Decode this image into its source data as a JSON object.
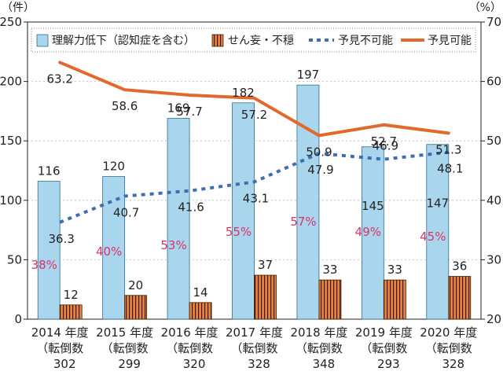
{
  "chart_data": {
    "type": "bar",
    "left_unit": "（件）",
    "right_unit": "（%）",
    "categories": [
      "2014 年度",
      "2015 年度",
      "2016 年度",
      "2017 年度",
      "2018 年度",
      "2019 年度",
      "2020 年度"
    ],
    "sublabels": [
      "（転倒数",
      "（転倒数",
      "（転倒数",
      "（転倒数",
      "（転倒数",
      "（転倒数",
      "（転倒数"
    ],
    "totals": [
      "302",
      "299",
      "320",
      "328",
      "348",
      "293",
      "328"
    ],
    "series": [
      {
        "name": "理解力低下（認知症を含む）",
        "kind": "bar",
        "axis": "left",
        "color": "#a9d6ec",
        "values": [
          116,
          120,
          169,
          182,
          197,
          145,
          147
        ],
        "labels": [
          "116",
          "120",
          "169",
          "182",
          "197",
          "145",
          "147"
        ]
      },
      {
        "name": "せん妄・不穏",
        "kind": "bar",
        "axis": "left",
        "color": "#e8823a",
        "values": [
          12,
          20,
          14,
          37,
          33,
          33,
          36
        ],
        "labels": [
          "12",
          "20",
          "14",
          "37",
          "33",
          "33",
          "36"
        ]
      },
      {
        "name": "予見不可能",
        "kind": "line",
        "axis": "right",
        "color": "#3d6fb0",
        "dashed": true,
        "values": [
          36.3,
          40.7,
          41.6,
          43.1,
          47.9,
          46.9,
          48.1
        ],
        "labels": [
          "36.3",
          "40.7",
          "41.6",
          "43.1",
          "47.9",
          "46.9",
          "48.1"
        ]
      },
      {
        "name": "予見可能",
        "kind": "line",
        "axis": "right",
        "color": "#e2692b",
        "dashed": false,
        "values": [
          63.2,
          58.6,
          57.7,
          57.2,
          50.9,
          52.7,
          51.3
        ],
        "labels": [
          "63.2",
          "58.6",
          "57.7",
          "57.2",
          "50.9",
          "52.7",
          "51.3"
        ]
      }
    ],
    "percent_labels": [
      "38%",
      "40%",
      "53%",
      "55%",
      "57%",
      "49%",
      "45%"
    ],
    "percent_color": "#d8336a",
    "ylim_left": [
      0,
      250
    ],
    "yticks_left": [
      0,
      50,
      100,
      150,
      200,
      250
    ],
    "ylim_right": [
      20,
      70
    ],
    "yticks_right": [
      20,
      30,
      40,
      50,
      60,
      70
    ],
    "grid": "horizontal-dashed",
    "legend_position": "top"
  }
}
